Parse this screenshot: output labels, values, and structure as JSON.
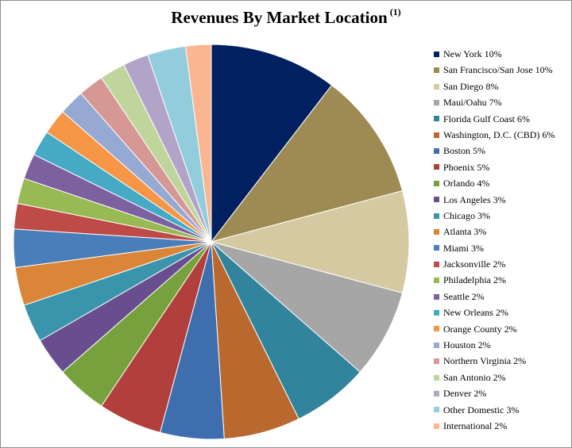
{
  "chart_data": {
    "type": "pie",
    "title": "Revenues By Market Location",
    "title_superscript": "(1)",
    "legend_position": "right",
    "start_angle_deg": 90,
    "direction": "clockwise",
    "slices": [
      {
        "label": "New York 10%",
        "name": "New York",
        "value": 10,
        "color": "#002060"
      },
      {
        "label": "San Francisco/San Jose 10%",
        "name": "San Francisco/San Jose",
        "value": 10,
        "color": "#9E8A53"
      },
      {
        "label": "San Diego 8%",
        "name": "San Diego",
        "value": 8,
        "color": "#D5C9A2"
      },
      {
        "label": "Maui/Oahu 7%",
        "name": "Maui/Oahu",
        "value": 7,
        "color": "#A6A6A6"
      },
      {
        "label": "Florida Gulf Coast 6%",
        "name": "Florida Gulf Coast",
        "value": 6,
        "color": "#31849B"
      },
      {
        "label": "Washington, D.C. (CBD) 6%",
        "name": "Washington, D.C. (CBD)",
        "value": 6,
        "color": "#B9692E"
      },
      {
        "label": "Boston 5%",
        "name": "Boston",
        "value": 5,
        "color": "#3F6EAE"
      },
      {
        "label": "Phoenix 5%",
        "name": "Phoenix",
        "value": 5,
        "color": "#B13F3C"
      },
      {
        "label": "Orlando 4%",
        "name": "Orlando",
        "value": 4,
        "color": "#77A13D"
      },
      {
        "label": "Los Angeles 3%",
        "name": "Los Angeles",
        "value": 3,
        "color": "#684E8E"
      },
      {
        "label": "Chicago 3%",
        "name": "Chicago",
        "value": 3,
        "color": "#3A95AC"
      },
      {
        "label": "Atlanta 3%",
        "name": "Atlanta",
        "value": 3,
        "color": "#DB8538"
      },
      {
        "label": "Miami 3%",
        "name": "Miami",
        "value": 3,
        "color": "#4A7EBB"
      },
      {
        "label": "Jacksonville 2%",
        "name": "Jacksonville",
        "value": 2,
        "color": "#BE4B48"
      },
      {
        "label": "Philadelphia 2%",
        "name": "Philadelphia",
        "value": 2,
        "color": "#98B954"
      },
      {
        "label": "Seattle 2%",
        "name": "Seattle",
        "value": 2,
        "color": "#7D60A0"
      },
      {
        "label": "New Orleans 2%",
        "name": "New Orleans",
        "value": 2,
        "color": "#46AAC5"
      },
      {
        "label": "Orange County 2%",
        "name": "Orange County",
        "value": 2,
        "color": "#F79646"
      },
      {
        "label": "Houston 2%",
        "name": "Houston",
        "value": 2,
        "color": "#95A9D3"
      },
      {
        "label": "Northern Virginia 2%",
        "name": "Northern Virginia",
        "value": 2,
        "color": "#D69895"
      },
      {
        "label": "San Antonio 2%",
        "name": "San Antonio",
        "value": 2,
        "color": "#BFD59C"
      },
      {
        "label": "Denver 2%",
        "name": "Denver",
        "value": 2,
        "color": "#B2A3C8"
      },
      {
        "label": "Other Domestic 3%",
        "name": "Other Domestic",
        "value": 3,
        "color": "#93CDDD"
      },
      {
        "label": "International 2%",
        "name": "International",
        "value": 2,
        "color": "#FAB690"
      }
    ]
  }
}
